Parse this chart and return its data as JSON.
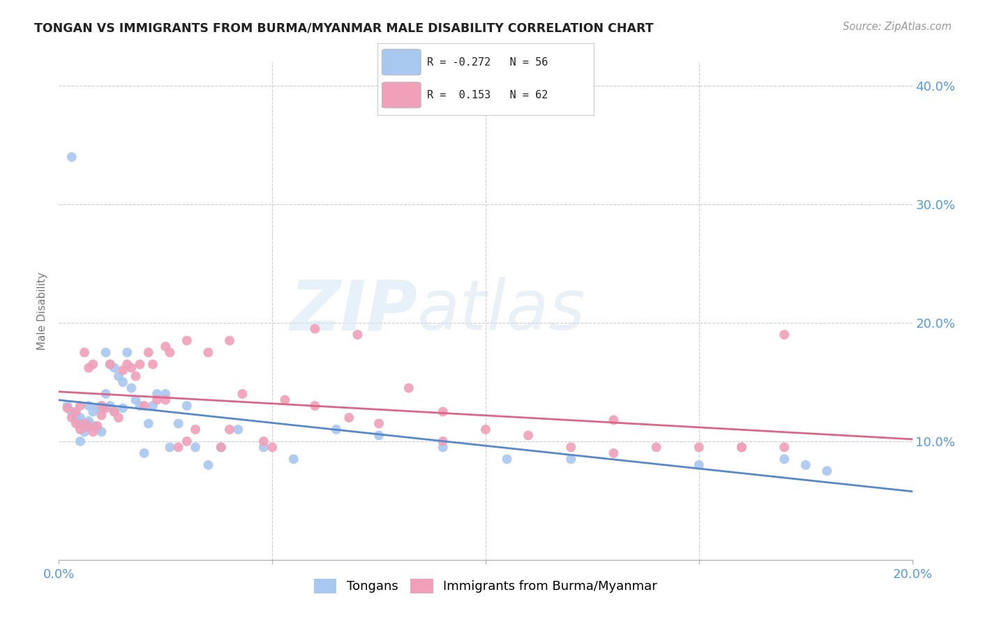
{
  "title": "TONGAN VS IMMIGRANTS FROM BURMA/MYANMAR MALE DISABILITY CORRELATION CHART",
  "source": "Source: ZipAtlas.com",
  "ylabel": "Male Disability",
  "xlim": [
    0.0,
    0.2
  ],
  "ylim": [
    0.0,
    0.42
  ],
  "R_blue": -0.272,
  "N_blue": 56,
  "R_pink": 0.153,
  "N_pink": 62,
  "color_blue": "#A8C8F0",
  "color_pink": "#F0A0B8",
  "color_blue_line": "#5588CC",
  "color_pink_line": "#DD6688",
  "watermark_zip": "ZIP",
  "watermark_atlas": "atlas",
  "legend_label_blue": "Tongans",
  "legend_label_pink": "Immigrants from Burma/Myanmar",
  "blue_x": [
    0.002,
    0.003,
    0.003,
    0.004,
    0.004,
    0.005,
    0.005,
    0.005,
    0.006,
    0.006,
    0.007,
    0.007,
    0.007,
    0.008,
    0.008,
    0.009,
    0.009,
    0.01,
    0.01,
    0.01,
    0.011,
    0.011,
    0.012,
    0.012,
    0.013,
    0.013,
    0.014,
    0.015,
    0.015,
    0.016,
    0.017,
    0.018,
    0.019,
    0.02,
    0.021,
    0.022,
    0.023,
    0.025,
    0.026,
    0.028,
    0.03,
    0.032,
    0.035,
    0.038,
    0.042,
    0.048,
    0.055,
    0.065,
    0.075,
    0.09,
    0.105,
    0.12,
    0.15,
    0.17,
    0.175,
    0.18
  ],
  "blue_y": [
    0.13,
    0.125,
    0.34,
    0.122,
    0.118,
    0.12,
    0.115,
    0.1,
    0.112,
    0.108,
    0.13,
    0.117,
    0.115,
    0.125,
    0.113,
    0.128,
    0.11,
    0.13,
    0.128,
    0.108,
    0.175,
    0.14,
    0.165,
    0.13,
    0.162,
    0.125,
    0.155,
    0.15,
    0.128,
    0.175,
    0.145,
    0.135,
    0.13,
    0.09,
    0.115,
    0.13,
    0.14,
    0.14,
    0.095,
    0.115,
    0.13,
    0.095,
    0.08,
    0.095,
    0.11,
    0.095,
    0.085,
    0.11,
    0.105,
    0.095,
    0.085,
    0.085,
    0.08,
    0.085,
    0.08,
    0.075
  ],
  "pink_x": [
    0.002,
    0.003,
    0.004,
    0.004,
    0.005,
    0.005,
    0.006,
    0.006,
    0.007,
    0.007,
    0.008,
    0.008,
    0.009,
    0.01,
    0.01,
    0.011,
    0.012,
    0.013,
    0.014,
    0.015,
    0.016,
    0.017,
    0.018,
    0.019,
    0.02,
    0.021,
    0.022,
    0.023,
    0.025,
    0.026,
    0.028,
    0.03,
    0.032,
    0.035,
    0.038,
    0.04,
    0.043,
    0.048,
    0.053,
    0.06,
    0.068,
    0.075,
    0.082,
    0.09,
    0.1,
    0.11,
    0.12,
    0.13,
    0.14,
    0.15,
    0.16,
    0.17,
    0.025,
    0.03,
    0.04,
    0.05,
    0.06,
    0.07,
    0.09,
    0.13,
    0.16,
    0.17
  ],
  "pink_y": [
    0.128,
    0.12,
    0.115,
    0.125,
    0.11,
    0.13,
    0.115,
    0.175,
    0.112,
    0.162,
    0.108,
    0.165,
    0.113,
    0.13,
    0.122,
    0.128,
    0.165,
    0.125,
    0.12,
    0.16,
    0.165,
    0.162,
    0.155,
    0.165,
    0.13,
    0.175,
    0.165,
    0.135,
    0.18,
    0.175,
    0.095,
    0.185,
    0.11,
    0.175,
    0.095,
    0.185,
    0.14,
    0.1,
    0.135,
    0.13,
    0.12,
    0.115,
    0.145,
    0.125,
    0.11,
    0.105,
    0.095,
    0.118,
    0.095,
    0.095,
    0.095,
    0.095,
    0.135,
    0.1,
    0.11,
    0.095,
    0.195,
    0.19,
    0.1,
    0.09,
    0.095,
    0.19
  ]
}
